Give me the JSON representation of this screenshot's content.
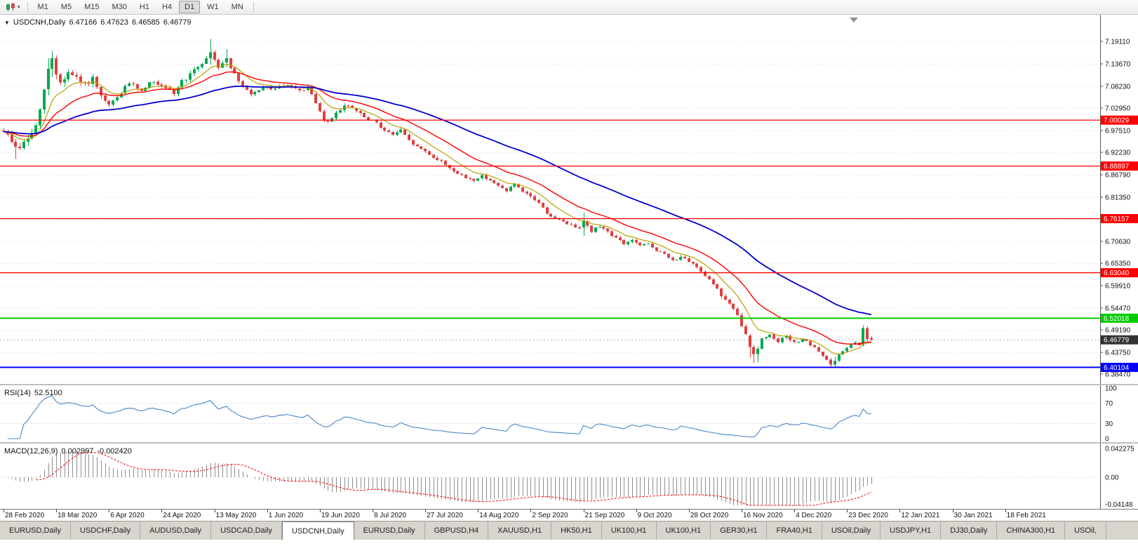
{
  "toolbar": {
    "timeframes": [
      {
        "label": "M1",
        "active": false
      },
      {
        "label": "M5",
        "active": false
      },
      {
        "label": "M15",
        "active": false
      },
      {
        "label": "M30",
        "active": false
      },
      {
        "label": "H1",
        "active": false
      },
      {
        "label": "H4",
        "active": false
      },
      {
        "label": "D1",
        "active": true
      },
      {
        "label": "W1",
        "active": false
      },
      {
        "label": "MN",
        "active": false
      }
    ]
  },
  "icons": {
    "chart_type": "candlestick-chart-icon",
    "toolbar_caret": "▾",
    "chart_collapse": "▼"
  },
  "chart_header": {
    "symbol": "USDCNH,Daily",
    "open": "6.47166",
    "high": "6.47623",
    "low": "6.46585",
    "close": "6.46779"
  },
  "price_axis": {
    "top_price": 7.1911,
    "bottom_price": 6.3847,
    "ticks": [
      "7.19110",
      "7.13670",
      "7.08230",
      "7.02950",
      "6.97510",
      "6.92230",
      "6.86790",
      "6.81350",
      "6.76030",
      "6.70630",
      "6.65350",
      "6.59910",
      "6.54470",
      "6.49190",
      "6.43750",
      "6.38470"
    ]
  },
  "levels": [
    {
      "price": 7.00029,
      "label": "7.00029",
      "color": "#FF0000",
      "width": 1.3
    },
    {
      "price": 6.88897,
      "label": "6.88897",
      "color": "#FF0000",
      "width": 1.3
    },
    {
      "price": 6.76157,
      "label": "6.76157",
      "color": "#FF0000",
      "width": 1.3
    },
    {
      "price": 6.6304,
      "label": "6.63040",
      "color": "#FF0000",
      "width": 1.3
    },
    {
      "price": 6.52018,
      "label": "6.52018",
      "color": "#00CC00",
      "width": 2
    },
    {
      "price": 6.40104,
      "label": "6.40104",
      "color": "#0000FF",
      "width": 2
    }
  ],
  "current_price": {
    "price": 6.46779,
    "label": "6.46779",
    "box_color": "#333333",
    "line_color": "#b0b0b0"
  },
  "rsi": {
    "label": "RSI(14)",
    "value": "52.5100",
    "period": 14,
    "levels": [
      30,
      70
    ],
    "axis_labels": [
      "100",
      "70",
      "30",
      "0"
    ],
    "color": "#4a86c8"
  },
  "macd": {
    "label": "MACD(12,26,9)",
    "value_main": "0.002997",
    "value_signal": "-0.002420",
    "fast": 12,
    "slow": 26,
    "signal": 9,
    "axis_max": "0.042275",
    "axis_zero": "0.00",
    "axis_min": "-0.04148",
    "histogram_color": "#8f8f8f",
    "signal_color": "#ff0000"
  },
  "time_axis": {
    "labels": [
      "28 Feb 2020",
      "18 Mar 2020",
      "6 Apr 2020",
      "24 Apr 2020",
      "13 May 2020",
      "1 Jun 2020",
      "19 Jun 2020",
      "8 Jul 2020",
      "27 Jul 2020",
      "14 Aug 2020",
      "2 Sep 2020",
      "21 Sep 2020",
      "9 Oct 2020",
      "28 Oct 2020",
      "16 Nov 2020",
      "4 Dec 2020",
      "23 Dec 2020",
      "12 Jan 2021",
      "30 Jan 2021",
      "18 Feb 2021"
    ]
  },
  "tabs": {
    "items": [
      {
        "label": "EURUSD,Daily",
        "active": false
      },
      {
        "label": "USDCHF,Daily",
        "active": false
      },
      {
        "label": "AUDUSD,Daily",
        "active": false
      },
      {
        "label": "USDCAD,Daily",
        "active": false
      },
      {
        "label": "USDCNH,Daily",
        "active": true
      },
      {
        "label": "EURUSD,Daily",
        "active": false
      },
      {
        "label": "GBPUSD,H4",
        "active": false
      },
      {
        "label": "XAUUSD,H1",
        "active": false
      },
      {
        "label": "HK50,H1",
        "active": false
      },
      {
        "label": "UK100,H1",
        "active": false
      },
      {
        "label": "UK100,H1",
        "active": false
      },
      {
        "label": "GER30,H1",
        "active": false
      },
      {
        "label": "FRA40,H1",
        "active": false
      },
      {
        "label": "USOil,Daily",
        "active": false
      },
      {
        "label": "USDJPY,H1",
        "active": false
      },
      {
        "label": "DJ30,Daily",
        "active": false
      },
      {
        "label": "CHINA300,H1",
        "active": false
      },
      {
        "label": "USOil,",
        "active": false
      }
    ]
  },
  "chart_data": {
    "type": "candlestick",
    "symbol": "USDCNH",
    "timeframe": "D1",
    "bar_count": 215,
    "first_bar_date": "28 Feb 2020",
    "price_range": [
      6.3847,
      7.1911
    ],
    "up_color": "#00A94F",
    "down_color": "#DE4040",
    "noise_seed": 9,
    "close_anchors": [
      [
        0,
        6.975
      ],
      [
        2,
        6.95
      ],
      [
        4,
        6.935
      ],
      [
        6,
        6.955
      ],
      [
        8,
        6.985
      ],
      [
        9,
        7.02
      ],
      [
        10,
        7.075
      ],
      [
        11,
        7.125
      ],
      [
        12,
        7.15
      ],
      [
        13,
        7.115
      ],
      [
        14,
        7.09
      ],
      [
        16,
        7.115
      ],
      [
        18,
        7.1
      ],
      [
        20,
        7.085
      ],
      [
        22,
        7.1
      ],
      [
        24,
        7.055
      ],
      [
        26,
        7.035
      ],
      [
        28,
        7.055
      ],
      [
        30,
        7.08
      ],
      [
        32,
        7.09
      ],
      [
        34,
        7.07
      ],
      [
        36,
        7.095
      ],
      [
        38,
        7.085
      ],
      [
        40,
        7.075
      ],
      [
        42,
        7.065
      ],
      [
        44,
        7.095
      ],
      [
        46,
        7.11
      ],
      [
        48,
        7.13
      ],
      [
        50,
        7.15
      ],
      [
        51,
        7.165
      ],
      [
        53,
        7.13
      ],
      [
        55,
        7.15
      ],
      [
        57,
        7.11
      ],
      [
        59,
        7.08
      ],
      [
        61,
        7.065
      ],
      [
        63,
        7.07
      ],
      [
        65,
        7.08
      ],
      [
        67,
        7.075
      ],
      [
        69,
        7.085
      ],
      [
        71,
        7.08
      ],
      [
        73,
        7.07
      ],
      [
        75,
        7.08
      ],
      [
        77,
        7.04
      ],
      [
        79,
        7.0
      ],
      [
        80,
        6.995
      ],
      [
        82,
        7.02
      ],
      [
        84,
        7.035
      ],
      [
        86,
        7.03
      ],
      [
        88,
        7.015
      ],
      [
        90,
        7.0
      ],
      [
        92,
        6.995
      ],
      [
        94,
        6.975
      ],
      [
        96,
        6.965
      ],
      [
        98,
        6.975
      ],
      [
        100,
        6.95
      ],
      [
        102,
        6.935
      ],
      [
        104,
        6.925
      ],
      [
        106,
        6.91
      ],
      [
        108,
        6.9
      ],
      [
        110,
        6.885
      ],
      [
        112,
        6.87
      ],
      [
        114,
        6.86
      ],
      [
        116,
        6.855
      ],
      [
        118,
        6.865
      ],
      [
        120,
        6.855
      ],
      [
        122,
        6.84
      ],
      [
        124,
        6.83
      ],
      [
        126,
        6.845
      ],
      [
        128,
        6.825
      ],
      [
        130,
        6.815
      ],
      [
        132,
        6.8
      ],
      [
        134,
        6.775
      ],
      [
        136,
        6.76
      ],
      [
        138,
        6.755
      ],
      [
        140,
        6.745
      ],
      [
        142,
        6.74
      ],
      [
        143,
        6.755
      ],
      [
        145,
        6.73
      ],
      [
        147,
        6.745
      ],
      [
        149,
        6.73
      ],
      [
        151,
        6.715
      ],
      [
        153,
        6.7
      ],
      [
        155,
        6.71
      ],
      [
        157,
        6.695
      ],
      [
        159,
        6.7
      ],
      [
        161,
        6.685
      ],
      [
        163,
        6.675
      ],
      [
        165,
        6.66
      ],
      [
        167,
        6.67
      ],
      [
        169,
        6.655
      ],
      [
        171,
        6.645
      ],
      [
        173,
        6.625
      ],
      [
        175,
        6.605
      ],
      [
        177,
        6.575
      ],
      [
        179,
        6.555
      ],
      [
        181,
        6.525
      ],
      [
        183,
        6.48
      ],
      [
        184,
        6.45
      ],
      [
        185,
        6.435
      ],
      [
        186,
        6.445
      ],
      [
        187,
        6.47
      ],
      [
        189,
        6.48
      ],
      [
        191,
        6.465
      ],
      [
        193,
        6.475
      ],
      [
        195,
        6.46
      ],
      [
        197,
        6.47
      ],
      [
        199,
        6.455
      ],
      [
        201,
        6.44
      ],
      [
        203,
        6.42
      ],
      [
        204,
        6.41
      ],
      [
        205,
        6.415
      ],
      [
        206,
        6.43
      ],
      [
        208,
        6.45
      ],
      [
        210,
        6.46
      ],
      [
        211,
        6.455
      ],
      [
        212,
        6.47
      ],
      [
        213,
        6.468
      ],
      [
        214,
        6.4678
      ]
    ],
    "volatility_anchors": [
      [
        0,
        0.012
      ],
      [
        8,
        0.02
      ],
      [
        14,
        0.022
      ],
      [
        20,
        0.015
      ],
      [
        30,
        0.011
      ],
      [
        46,
        0.012
      ],
      [
        55,
        0.012
      ],
      [
        70,
        0.009
      ],
      [
        85,
        0.009
      ],
      [
        100,
        0.008
      ],
      [
        120,
        0.007
      ],
      [
        140,
        0.007
      ],
      [
        150,
        0.008
      ],
      [
        165,
        0.007
      ],
      [
        180,
        0.01
      ],
      [
        188,
        0.007
      ],
      [
        200,
        0.006
      ],
      [
        210,
        0.006
      ],
      [
        214,
        0.004
      ]
    ],
    "bar_overrides": {
      "3": [
        6.948,
        6.955,
        6.906,
        6.936
      ],
      "11": [
        7.075,
        7.15,
        7.06,
        7.125
      ],
      "12": [
        7.125,
        7.168,
        7.105,
        7.15
      ],
      "51": [
        7.15,
        7.197,
        7.135,
        7.165
      ],
      "55": [
        7.14,
        7.172,
        7.128,
        7.15
      ],
      "143": [
        6.74,
        6.776,
        6.72,
        6.756
      ],
      "184": [
        6.478,
        6.482,
        6.425,
        6.45
      ],
      "185": [
        6.45,
        6.455,
        6.412,
        6.433
      ],
      "186": [
        6.433,
        6.452,
        6.414,
        6.446
      ],
      "204": [
        6.42,
        6.424,
        6.401,
        6.408
      ],
      "205": [
        6.408,
        6.426,
        6.402,
        6.417
      ],
      "212": [
        6.456,
        6.503,
        6.452,
        6.496
      ],
      "213": [
        6.496,
        6.5,
        6.464,
        6.47
      ],
      "214": [
        6.47166,
        6.47623,
        6.46585,
        6.46779
      ]
    },
    "moving_averages": [
      {
        "name": "ma-fast",
        "period": 9,
        "color": "#B8A000",
        "width": 1.2
      },
      {
        "name": "ma-mid",
        "period": 21,
        "color": "#FF0000",
        "width": 1.4
      },
      {
        "name": "ma-slow",
        "period": 55,
        "color": "#0000CD",
        "width": 1.8
      }
    ]
  }
}
